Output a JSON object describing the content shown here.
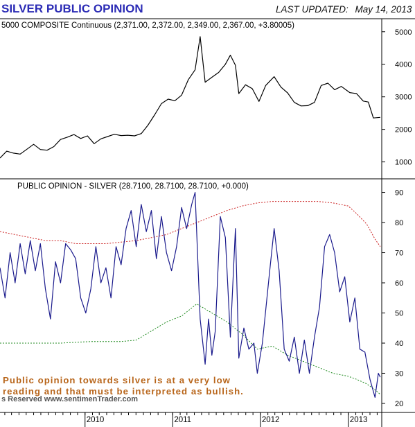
{
  "header": {
    "title": "SILVER PUBLIC OPINION",
    "last_updated_label": "LAST UPDATED:",
    "last_updated_date": "May 14, 2013"
  },
  "annotation": {
    "line1": "Public opinion towards silver is at a very low",
    "line2": "reading and that must be interpreted as bullish."
  },
  "footer": {
    "copyright": "s Reserved  www.sentimenTrader.com"
  },
  "colors": {
    "price": "#000000",
    "opinion": "#1a1a8c",
    "upper_band": "#cc2222",
    "lower_band": "#1f8a1f",
    "title": "#2b2bb5",
    "annotation": "#b8651a"
  },
  "chart_data": [
    {
      "type": "line",
      "title": "5000 COMPOSITE Continuous (2,371.00, 2,372.00, 2,349.00, 2,367.00, +3.80005)",
      "y_ticks": [
        1000,
        2000,
        3000,
        4000,
        5000
      ],
      "ylim": [
        480,
        5400
      ],
      "grid": false,
      "series": [
        {
          "points": [
            [
              "2009-01-12",
              1120
            ],
            [
              "2009-02-09",
              1330
            ],
            [
              "2009-03-09",
              1270
            ],
            [
              "2009-04-06",
              1240
            ],
            [
              "2009-05-04",
              1390
            ],
            [
              "2009-06-01",
              1540
            ],
            [
              "2009-06-29",
              1380
            ],
            [
              "2009-07-27",
              1360
            ],
            [
              "2009-08-24",
              1470
            ],
            [
              "2009-09-21",
              1690
            ],
            [
              "2009-10-19",
              1760
            ],
            [
              "2009-11-16",
              1840
            ],
            [
              "2009-12-14",
              1720
            ],
            [
              "2010-01-11",
              1800
            ],
            [
              "2010-02-08",
              1560
            ],
            [
              "2010-03-08",
              1710
            ],
            [
              "2010-04-05",
              1780
            ],
            [
              "2010-05-03",
              1850
            ],
            [
              "2010-05-31",
              1810
            ],
            [
              "2010-06-28",
              1820
            ],
            [
              "2010-07-26",
              1800
            ],
            [
              "2010-08-23",
              1870
            ],
            [
              "2010-09-20",
              2130
            ],
            [
              "2010-10-18",
              2450
            ],
            [
              "2010-11-15",
              2790
            ],
            [
              "2010-12-13",
              2930
            ],
            [
              "2011-01-10",
              2880
            ],
            [
              "2011-02-07",
              3050
            ],
            [
              "2011-03-07",
              3530
            ],
            [
              "2011-04-04",
              3830
            ],
            [
              "2011-04-25",
              4850
            ],
            [
              "2011-05-16",
              3450
            ],
            [
              "2011-06-13",
              3600
            ],
            [
              "2011-07-11",
              3750
            ],
            [
              "2011-08-08",
              4000
            ],
            [
              "2011-08-29",
              4280
            ],
            [
              "2011-09-19",
              3970
            ],
            [
              "2011-10-03",
              3100
            ],
            [
              "2011-10-31",
              3370
            ],
            [
              "2011-11-28",
              3250
            ],
            [
              "2011-12-26",
              2860
            ],
            [
              "2012-01-23",
              3350
            ],
            [
              "2012-02-27",
              3620
            ],
            [
              "2012-03-26",
              3300
            ],
            [
              "2012-04-23",
              3120
            ],
            [
              "2012-05-21",
              2830
            ],
            [
              "2012-06-18",
              2720
            ],
            [
              "2012-07-16",
              2730
            ],
            [
              "2012-08-13",
              2830
            ],
            [
              "2012-09-10",
              3350
            ],
            [
              "2012-10-08",
              3420
            ],
            [
              "2012-11-05",
              3220
            ],
            [
              "2012-12-03",
              3320
            ],
            [
              "2013-01-07",
              3130
            ],
            [
              "2013-02-04",
              3100
            ],
            [
              "2013-03-04",
              2870
            ],
            [
              "2013-03-25",
              2840
            ],
            [
              "2013-04-15",
              2350
            ],
            [
              "2013-05-14",
              2370
            ]
          ]
        }
      ]
    },
    {
      "type": "line",
      "title": "PUBLIC OPINION - SILVER (28.7100, 28.7100, 28.7100, +0.000)",
      "y_ticks": [
        20,
        30,
        40,
        50,
        60,
        70,
        80,
        90
      ],
      "ylim": [
        17,
        94.5
      ],
      "x_ticks": [
        "2010",
        "2011",
        "2012",
        "2013"
      ],
      "grid": false,
      "series": [
        {
          "points": [
            [
              "2009-01-12",
              65
            ],
            [
              "2009-02-02",
              55
            ],
            [
              "2009-02-23",
              70
            ],
            [
              "2009-03-16",
              60
            ],
            [
              "2009-04-06",
              73
            ],
            [
              "2009-04-27",
              63
            ],
            [
              "2009-05-18",
              74
            ],
            [
              "2009-06-08",
              64
            ],
            [
              "2009-06-29",
              73
            ],
            [
              "2009-07-20",
              58
            ],
            [
              "2009-08-10",
              48
            ],
            [
              "2009-08-31",
              67
            ],
            [
              "2009-09-21",
              60
            ],
            [
              "2009-10-12",
              73
            ],
            [
              "2009-11-02",
              71
            ],
            [
              "2009-11-23",
              68
            ],
            [
              "2009-12-14",
              55
            ],
            [
              "2010-01-04",
              50
            ],
            [
              "2010-01-25",
              58
            ],
            [
              "2010-02-15",
              72
            ],
            [
              "2010-03-08",
              60
            ],
            [
              "2010-03-29",
              65
            ],
            [
              "2010-04-19",
              55
            ],
            [
              "2010-05-10",
              72
            ],
            [
              "2010-05-31",
              66
            ],
            [
              "2010-06-21",
              78
            ],
            [
              "2010-07-12",
              84
            ],
            [
              "2010-08-02",
              72
            ],
            [
              "2010-08-23",
              86
            ],
            [
              "2010-09-13",
              77
            ],
            [
              "2010-10-04",
              84
            ],
            [
              "2010-10-25",
              68
            ],
            [
              "2010-11-15",
              82
            ],
            [
              "2010-12-06",
              70
            ],
            [
              "2010-12-27",
              64
            ],
            [
              "2011-01-17",
              72
            ],
            [
              "2011-02-07",
              85
            ],
            [
              "2011-02-28",
              78
            ],
            [
              "2011-03-21",
              86
            ],
            [
              "2011-04-04",
              90
            ],
            [
              "2011-04-25",
              48
            ],
            [
              "2011-05-16",
              33
            ],
            [
              "2011-05-30",
              48
            ],
            [
              "2011-06-13",
              36
            ],
            [
              "2011-06-27",
              44
            ],
            [
              "2011-07-18",
              82
            ],
            [
              "2011-08-08",
              75
            ],
            [
              "2011-08-29",
              42
            ],
            [
              "2011-09-19",
              78
            ],
            [
              "2011-10-03",
              35
            ],
            [
              "2011-10-24",
              45
            ],
            [
              "2011-11-14",
              38
            ],
            [
              "2011-12-05",
              40
            ],
            [
              "2011-12-19",
              30
            ],
            [
              "2012-01-09",
              40
            ],
            [
              "2012-02-06",
              62
            ],
            [
              "2012-02-27",
              78
            ],
            [
              "2012-03-19",
              64
            ],
            [
              "2012-04-09",
              38
            ],
            [
              "2012-04-30",
              34
            ],
            [
              "2012-05-21",
              42
            ],
            [
              "2012-06-11",
              30
            ],
            [
              "2012-07-02",
              41
            ],
            [
              "2012-07-23",
              30
            ],
            [
              "2012-08-13",
              42
            ],
            [
              "2012-09-03",
              52
            ],
            [
              "2012-09-24",
              72
            ],
            [
              "2012-10-15",
              76
            ],
            [
              "2012-11-05",
              70
            ],
            [
              "2012-11-26",
              57
            ],
            [
              "2012-12-17",
              62
            ],
            [
              "2013-01-07",
              47
            ],
            [
              "2013-01-28",
              55
            ],
            [
              "2013-02-18",
              38
            ],
            [
              "2013-03-11",
              37
            ],
            [
              "2013-04-01",
              28
            ],
            [
              "2013-04-22",
              22
            ],
            [
              "2013-05-06",
              30
            ],
            [
              "2013-05-14",
              28.71
            ]
          ]
        },
        {
          "points": [
            [
              "2009-01-12",
              77
            ],
            [
              "2009-03-16",
              76
            ],
            [
              "2009-05-18",
              75
            ],
            [
              "2009-07-20",
              74
            ],
            [
              "2009-09-21",
              74
            ],
            [
              "2009-11-23",
              73
            ],
            [
              "2010-01-25",
              73
            ],
            [
              "2010-03-29",
              73
            ],
            [
              "2010-05-31",
              73.5
            ],
            [
              "2010-08-02",
              74
            ],
            [
              "2010-10-04",
              75
            ],
            [
              "2010-12-06",
              76
            ],
            [
              "2011-02-07",
              78
            ],
            [
              "2011-04-11",
              80
            ],
            [
              "2011-06-13",
              82
            ],
            [
              "2011-08-15",
              84
            ],
            [
              "2011-10-17",
              85.5
            ],
            [
              "2011-12-19",
              86.5
            ],
            [
              "2012-02-20",
              87
            ],
            [
              "2012-04-23",
              87
            ],
            [
              "2012-06-25",
              87
            ],
            [
              "2012-08-27",
              87
            ],
            [
              "2012-10-29",
              86.5
            ],
            [
              "2012-12-31",
              85.5
            ],
            [
              "2013-02-04",
              83
            ],
            [
              "2013-03-18",
              79.5
            ],
            [
              "2013-04-22",
              74.5
            ],
            [
              "2013-05-14",
              72
            ]
          ]
        },
        {
          "points": [
            [
              "2009-01-12",
              40
            ],
            [
              "2009-03-16",
              40
            ],
            [
              "2009-05-18",
              40
            ],
            [
              "2009-07-20",
              40
            ],
            [
              "2009-09-21",
              40
            ],
            [
              "2009-11-23",
              40.3
            ],
            [
              "2010-01-25",
              40.5
            ],
            [
              "2010-03-29",
              40.5
            ],
            [
              "2010-05-31",
              40.5
            ],
            [
              "2010-08-02",
              41
            ],
            [
              "2010-10-04",
              44
            ],
            [
              "2010-12-06",
              47
            ],
            [
              "2011-02-07",
              49
            ],
            [
              "2011-04-11",
              53
            ],
            [
              "2011-06-13",
              50
            ],
            [
              "2011-08-15",
              47
            ],
            [
              "2011-10-17",
              43
            ],
            [
              "2011-12-19",
              38
            ],
            [
              "2012-02-20",
              39
            ],
            [
              "2012-04-23",
              36
            ],
            [
              "2012-06-25",
              34
            ],
            [
              "2012-08-27",
              32
            ],
            [
              "2012-10-29",
              30
            ],
            [
              "2012-12-31",
              29
            ],
            [
              "2013-02-04",
              28
            ],
            [
              "2013-03-18",
              26.5
            ],
            [
              "2013-04-22",
              24.5
            ],
            [
              "2013-05-14",
              23
            ]
          ]
        }
      ]
    }
  ]
}
